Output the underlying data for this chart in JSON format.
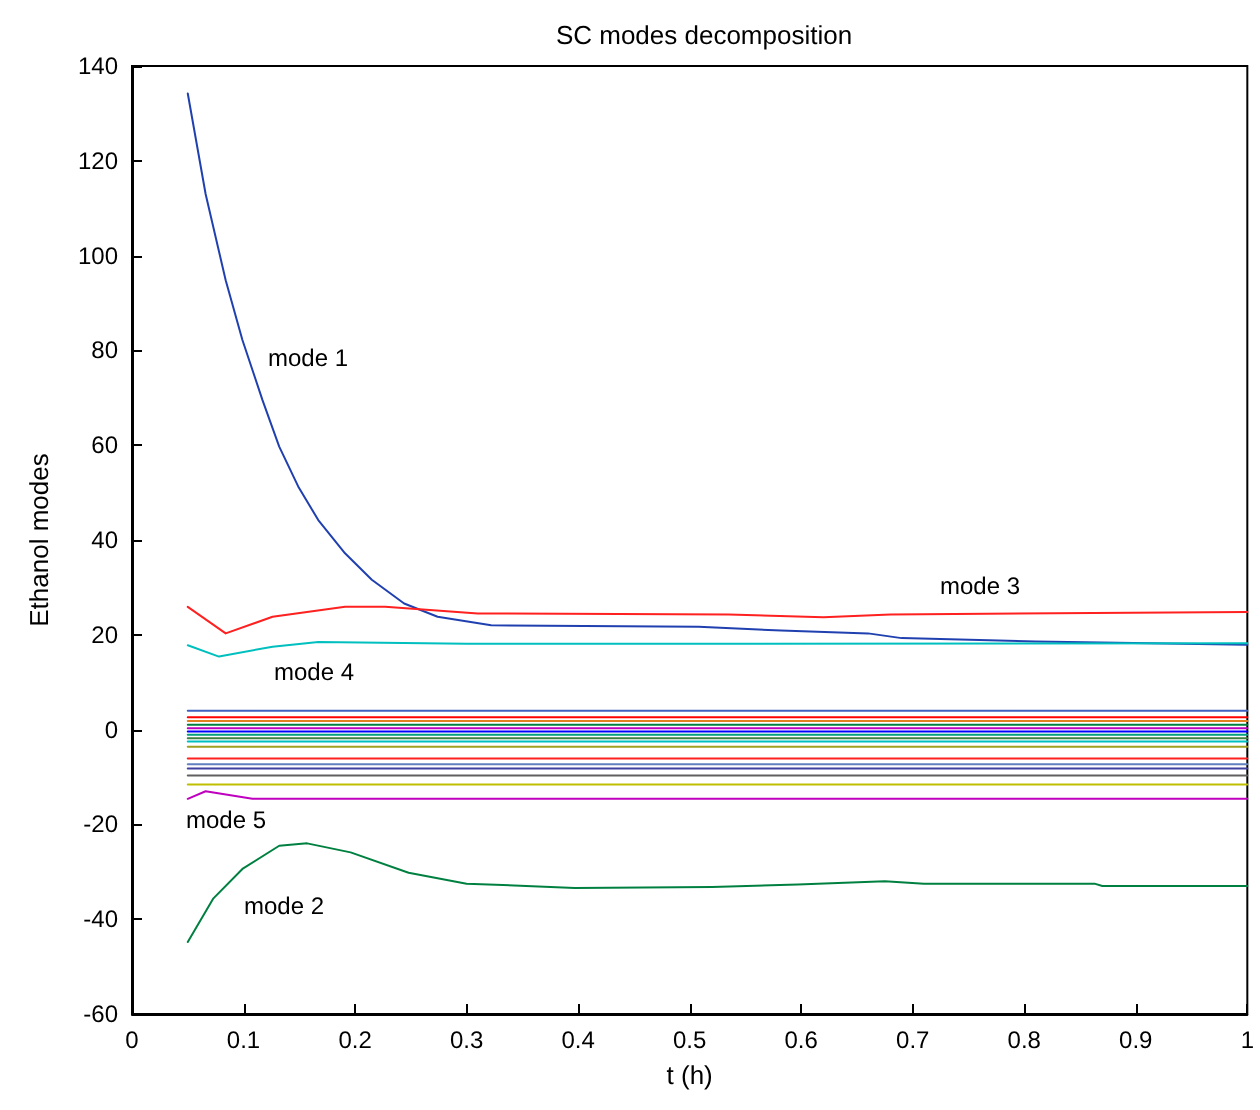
{
  "chart_data": {
    "type": "line",
    "title": "SC modes decomposition",
    "xlabel": "t (h)",
    "ylabel": "Ethanol modes",
    "xlim": [
      0,
      1
    ],
    "xticks": [
      0,
      0.1,
      0.2,
      0.3,
      0.4,
      0.5,
      0.6,
      0.7,
      0.8,
      0.9,
      1
    ],
    "ylim": [
      -60,
      140
    ],
    "yticks": [
      -60,
      -40,
      -20,
      0,
      20,
      40,
      60,
      80,
      100,
      120,
      140
    ],
    "grid": false,
    "line_style": "solid",
    "series": [
      {
        "name": "mode 1",
        "color": "#2040b0",
        "x": [
          0.05,
          0.066,
          0.084,
          0.099,
          0.117,
          0.132,
          0.149,
          0.167,
          0.191,
          0.215,
          0.244,
          0.274,
          0.322,
          0.508,
          0.582,
          0.66,
          0.69,
          0.81,
          1
        ],
        "values": [
          134.2,
          113,
          94.8,
          82.2,
          69.5,
          59.7,
          51.3,
          44.2,
          37.2,
          31.6,
          26.6,
          23.8,
          22.0,
          21.7,
          20.9,
          20.3,
          19.3,
          18.6,
          17.9
        ]
      },
      {
        "name": "mode 2",
        "color": "#008040",
        "x": [
          0.05,
          0.073,
          0.099,
          0.132,
          0.157,
          0.196,
          0.248,
          0.3,
          0.397,
          0.52,
          0.597,
          0.675,
          0.71,
          0.863,
          0.87,
          1
        ],
        "values": [
          -44.8,
          -35.6,
          -29.4,
          -24.5,
          -24.0,
          -25.9,
          -30.2,
          -32.5,
          -33.4,
          -33.2,
          -32.7,
          -32.0,
          -32.5,
          -32.5,
          -33.0,
          -33.0
        ]
      },
      {
        "name": "mode 3",
        "color": "#ff2020",
        "x": [
          0.05,
          0.084,
          0.126,
          0.191,
          0.227,
          0.31,
          0.535,
          0.62,
          0.68,
          1
        ],
        "values": [
          25.9,
          20.3,
          23.8,
          25.9,
          25.9,
          24.5,
          24.3,
          23.7,
          24.3,
          24.8
        ]
      },
      {
        "name": "mode 4",
        "color": "#00bfbf",
        "x": [
          0.05,
          0.078,
          0.126,
          0.167,
          0.3,
          1
        ],
        "values": [
          17.8,
          15.4,
          17.5,
          18.5,
          18.1,
          18.2
        ]
      },
      {
        "name": "mode 5",
        "color": "#bf00bf",
        "x": [
          0.05,
          0.066,
          0.108,
          1
        ],
        "values": [
          -14.6,
          -13.0,
          -14.6,
          -14.6
        ]
      },
      {
        "color": "#4060c0",
        "x": [
          0.05,
          1
        ],
        "values": [
          4.0,
          4.0
        ]
      },
      {
        "color": "#ff0000",
        "x": [
          0.05,
          1
        ],
        "values": [
          2.6,
          2.6
        ]
      },
      {
        "color": "#e08020",
        "x": [
          0.05,
          1
        ],
        "values": [
          1.8,
          1.8
        ]
      },
      {
        "color": "#008040",
        "x": [
          0.05,
          1
        ],
        "values": [
          1.0,
          1.0
        ]
      },
      {
        "color": "#bf00bf",
        "x": [
          0.05,
          1
        ],
        "values": [
          0.3,
          0.3
        ]
      },
      {
        "color": "#0000ff",
        "x": [
          0.05,
          1
        ],
        "values": [
          -0.4,
          -0.4
        ]
      },
      {
        "color": "#00a080",
        "x": [
          0.05,
          1
        ],
        "values": [
          -1.1,
          -1.1
        ]
      },
      {
        "color": "#408040",
        "x": [
          0.05,
          1
        ],
        "values": [
          -1.8,
          -1.8
        ]
      },
      {
        "color": "#00bfbf",
        "x": [
          0.05,
          1
        ],
        "values": [
          -2.5,
          -2.5
        ]
      },
      {
        "color": "#a0a020",
        "x": [
          0.05,
          1
        ],
        "values": [
          -3.6,
          -3.6
        ]
      },
      {
        "color": "#ff2020",
        "x": [
          0.05,
          1
        ],
        "values": [
          -6.1,
          -6.1
        ]
      },
      {
        "color": "#6080c0",
        "x": [
          0.05,
          1
        ],
        "values": [
          -7.3,
          -7.3
        ]
      },
      {
        "color": "#4040a0",
        "x": [
          0.05,
          1
        ],
        "values": [
          -8.2,
          -8.2
        ]
      },
      {
        "color": "#606060",
        "x": [
          0.05,
          1
        ],
        "values": [
          -9.7,
          -9.7
        ]
      },
      {
        "color": "#bfbf00",
        "x": [
          0.05,
          1
        ],
        "values": [
          -11.6,
          -11.6
        ]
      }
    ]
  }
}
